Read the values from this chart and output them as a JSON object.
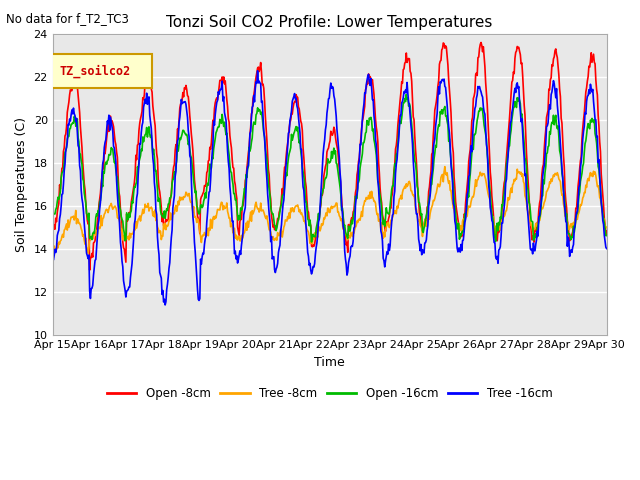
{
  "title": "Tonzi Soil CO2 Profile: Lower Temperatures",
  "subtitle": "No data for f_T2_TC3",
  "legend_box_label": "TZ_soilco2",
  "xlabel": "Time",
  "ylabel": "Soil Temperatures (C)",
  "ylim": [
    10,
    24
  ],
  "yticks": [
    10,
    12,
    14,
    16,
    18,
    20,
    22,
    24
  ],
  "n_days": 15,
  "bg_color": "#e8e8e8",
  "grid_color": "#ffffff",
  "fig_bg": "#ffffff",
  "x_tick_labels": [
    "Apr 15",
    "Apr 16",
    "Apr 17",
    "Apr 18",
    "Apr 19",
    "Apr 20",
    "Apr 21",
    "Apr 22",
    "Apr 23",
    "Apr 24",
    "Apr 25",
    "Apr 26",
    "Apr 27",
    "Apr 28",
    "Apr 29",
    "Apr 30"
  ],
  "series_colors": {
    "open_8cm": "#ff0000",
    "tree_8cm": "#ffa500",
    "open_16cm": "#00bb00",
    "tree_16cm": "#0000ff"
  },
  "series_labels": {
    "open_8cm": "Open -8cm",
    "tree_8cm": "Tree -8cm",
    "open_16cm": "Open -16cm",
    "tree_16cm": "Tree -16cm"
  }
}
